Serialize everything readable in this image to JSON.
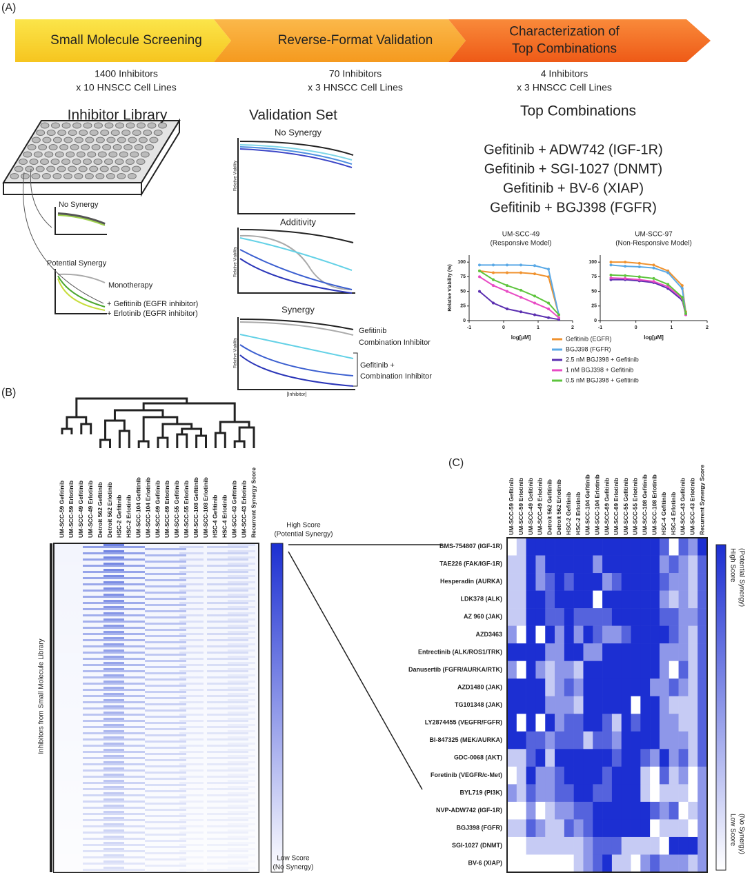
{
  "panel_a": {
    "label": "(A)",
    "steps": [
      {
        "title": [
          "Small Molecule Screening"
        ],
        "detail": [
          "1400 Inhibitors",
          "x 10 HNSCC Cell Lines"
        ]
      },
      {
        "title": [
          "Reverse-Format Validation"
        ],
        "detail": [
          "70 Inhibitors",
          "x 3 HNSCC Cell Lines"
        ]
      },
      {
        "title": [
          "Characterization of",
          "Top Combinations"
        ],
        "detail": [
          "4 Inhibitors",
          "x 3 HNSCC Cell Lines"
        ]
      }
    ],
    "library": {
      "title": "Inhibitor Library",
      "no_synergy": "No Synergy",
      "potential_synergy": "Potential Synergy",
      "monotherapy": "Monotherapy",
      "gefitinib": "+ Gefitinib (EGFR inhibitor)",
      "erlotinib": "+ Erlotinib (EGFR inhibitor)"
    },
    "validation": {
      "title": "Validation Set",
      "panels": [
        "No Synergy",
        "Additivity",
        "Synergy"
      ],
      "y_label": "Relative Viability",
      "x_label": "[Inhibitor]",
      "gefitinib": "Gefitinib",
      "combination_inhibitor": "Combination Inhibitor",
      "gefitinib_plus": [
        "Gefitinib +",
        "Combination Inhibitor"
      ]
    },
    "top": {
      "title": "Top Combinations",
      "combinations": [
        "Gefitinib + ADW742 (IGF-1R)",
        "Gefitinib + SGI-1027 (DNMT)",
        "Gefitinib + BV-6 (XIAP)",
        "Gefitinib + BGJ398 (FGFR)"
      ]
    }
  },
  "chart_data": [
    {
      "type": "line",
      "title": "UM-SCC-49",
      "subtitle": "(Responsive Model)",
      "y_label": "Relative Viability (%)",
      "x_label": "log[µM]",
      "x": [
        -0.7,
        -0.3,
        0.1,
        0.5,
        0.9,
        1.3,
        1.6
      ],
      "xlim": [
        -1,
        2
      ],
      "xticks": [
        -1,
        0,
        1,
        2
      ],
      "ylim": [
        0,
        112
      ],
      "yticks": [
        0,
        25,
        50,
        75,
        100
      ],
      "series": [
        {
          "name": "Gefitinib (EGFR)",
          "color": "#f0922e",
          "values": [
            85,
            82,
            82,
            82,
            80,
            75,
            10
          ]
        },
        {
          "name": "BGJ398 (FGFR)",
          "color": "#5aa9e6",
          "values": [
            95,
            95,
            95,
            95,
            94,
            88,
            10
          ]
        },
        {
          "name": "2.5 nM BGJ398 + Gefitinib",
          "color": "#5b2fb0",
          "values": [
            50,
            30,
            20,
            15,
            10,
            5,
            2
          ]
        },
        {
          "name": "1 nM BGJ398 + Gefitinib",
          "color": "#e84bc4",
          "values": [
            75,
            60,
            50,
            40,
            30,
            20,
            5
          ]
        },
        {
          "name": "0.5 nM BGJ398 + Gefitinib",
          "color": "#5dc43c",
          "values": [
            85,
            70,
            60,
            52,
            42,
            30,
            10
          ]
        }
      ]
    },
    {
      "type": "line",
      "title": "UM-SCC-97",
      "subtitle": "(Non-Responsive Model)",
      "x_label": "log[µM]",
      "x": [
        -0.7,
        -0.3,
        0.1,
        0.5,
        0.9,
        1.3,
        1.4
      ],
      "xlim": [
        -1,
        2
      ],
      "xticks": [
        -1,
        0,
        1,
        2
      ],
      "ylim": [
        0,
        112
      ],
      "yticks": [
        0,
        25,
        50,
        75,
        100
      ],
      "series": [
        {
          "color": "#f0922e",
          "values": [
            100,
            100,
            98,
            95,
            85,
            60,
            15
          ]
        },
        {
          "color": "#5aa9e6",
          "values": [
            95,
            93,
            92,
            90,
            82,
            55,
            12
          ]
        },
        {
          "color": "#5b2fb0",
          "values": [
            70,
            70,
            68,
            65,
            55,
            35,
            10
          ]
        },
        {
          "color": "#e84bc4",
          "values": [
            73,
            72,
            70,
            67,
            58,
            38,
            10
          ]
        },
        {
          "color": "#5dc43c",
          "values": [
            78,
            77,
            75,
            72,
            62,
            40,
            12
          ]
        }
      ]
    }
  ],
  "panel_b": {
    "label": "(B)",
    "y_label": "Inhibitors from Small Molecule Library",
    "columns": [
      "UM-SCC-59 Gefitinib",
      "UM-SCC-59 Erlotinib",
      "UM-SCC-49 Gefitinib",
      "UM-SCC-49 Erlotinib",
      "Detroit 562 Gefitinib",
      "Detroit 562 Erlotinib",
      "HSC-2 Gefitinib",
      "HSC-2 Erlotinib",
      "UM-SCC-104 Gefitinib",
      "UM-SCC-104 Erlotinib",
      "UM-SCC-69 Gefitinib",
      "UM-SCC-69 Erlotinib",
      "UM-SCC-55 Gefitinib",
      "UM-SCC-55 Erlotinib",
      "UM-SCC-108 Gefitinib",
      "UM-SCC-108 Erlotinib",
      "HSC-4 Gefitinib",
      "HSC-4 Erlotinib",
      "UM-SCC-43 Gefitinib",
      "UM-SCC-43 Erlotinib",
      "Recurrent Synergy Score"
    ],
    "high_label": [
      "High Score",
      "(Potential Synergy)"
    ],
    "low_label": [
      "Low Score",
      "(No Synergy)"
    ]
  },
  "panel_c": {
    "label": "(C)",
    "columns": [
      "UM-SCC-59 Gefitinib",
      "UM-SCC-59 Erlotinib",
      "UM-SCC-49 Gefitinib",
      "UM-SCC-49 Erlotinib",
      "Detroit 562 Gefitinib",
      "Detroit 562 Erlotinib",
      "HSC-2 Gefitinib",
      "HSC-2 Erlotinib",
      "UM-SCC-104 Gefitinib",
      "UM-SCC-104 Erlotinib",
      "UM-SCC-69 Gefitinib",
      "UM-SCC-69 Erlotinib",
      "UM-SCC-55 Gefitinib",
      "UM-SCC-55 Erlotinib",
      "UM-SCC-108 Gefitinib",
      "UM-SCC-108 Erlotinib",
      "HSC-4 Gefitinib",
      "HSC-4 Erlotinib",
      "UM-SCC-43 Gefitinib",
      "UM-SCC-43 Erlotinib",
      "Recurrent Synergy Score"
    ],
    "rows": [
      "BMS-754807 (IGF-1R)",
      "TAE226 (FAK/IGF-1R)",
      "Hesperadin (AURKA)",
      "LDK378 (ALK)",
      "AZ 960 (JAK)",
      "AZD3463",
      "Entrectinib (ALK/ROS1/TRK)",
      "Danusertib (FGFR/AURKA/RTK)",
      "AZD1480 (JAK)",
      "TG101348 (JAK)",
      "LY2874455 (VEGFR/FGFR)",
      "BI-847325 (MEK/AURKA)",
      "GDC-0068 (AKT)",
      "Foretinib (VEGFR/c-Met)",
      "BYL719 (PI3K)",
      "NVP-ADW742 (IGF-1R)",
      "BGJ398 (FGFR)",
      "SGI-1027 (DNMT)",
      "BV-6 (XIAP)"
    ],
    "vlim": [
      0,
      4
    ],
    "low_color": "#ffffff",
    "high_color": "#1c2fd2",
    "values": [
      [
        0,
        1,
        4,
        4,
        4,
        4,
        4,
        4,
        4,
        4,
        4,
        4,
        4,
        4,
        4,
        4,
        3,
        0,
        3,
        2,
        4
      ],
      [
        1,
        1,
        4,
        2,
        4,
        4,
        4,
        4,
        4,
        2,
        4,
        4,
        4,
        4,
        4,
        4,
        2,
        3,
        2,
        1,
        3
      ],
      [
        1,
        1,
        4,
        2,
        3,
        4,
        3,
        4,
        4,
        4,
        2,
        3,
        4,
        4,
        4,
        4,
        3,
        2,
        2,
        1,
        3
      ],
      [
        1,
        1,
        4,
        4,
        3,
        4,
        4,
        4,
        4,
        0,
        4,
        4,
        4,
        4,
        4,
        4,
        2,
        1,
        2,
        1,
        3
      ],
      [
        1,
        1,
        4,
        4,
        3,
        3,
        4,
        3,
        3,
        3,
        3,
        4,
        4,
        4,
        4,
        4,
        3,
        3,
        2,
        2,
        3
      ],
      [
        2,
        0,
        4,
        0,
        4,
        2,
        4,
        2,
        4,
        3,
        2,
        2,
        3,
        4,
        4,
        4,
        4,
        3,
        2,
        1,
        3
      ],
      [
        4,
        4,
        4,
        4,
        2,
        2,
        4,
        4,
        2,
        2,
        4,
        4,
        4,
        4,
        4,
        4,
        2,
        2,
        2,
        1,
        3
      ],
      [
        2,
        0,
        4,
        2,
        1,
        2,
        2,
        1,
        4,
        4,
        4,
        4,
        4,
        4,
        4,
        4,
        2,
        0,
        3,
        1,
        3
      ],
      [
        4,
        4,
        4,
        4,
        1,
        2,
        3,
        2,
        4,
        4,
        4,
        4,
        4,
        4,
        4,
        2,
        2,
        3,
        2,
        1,
        3
      ],
      [
        4,
        4,
        4,
        4,
        2,
        2,
        2,
        1,
        4,
        4,
        4,
        4,
        4,
        0,
        4,
        4,
        2,
        1,
        1,
        1,
        3
      ],
      [
        4,
        0,
        4,
        0,
        4,
        2,
        3,
        3,
        4,
        4,
        3,
        1,
        4,
        3,
        4,
        4,
        2,
        2,
        1,
        1,
        3
      ],
      [
        4,
        4,
        3,
        3,
        2,
        3,
        3,
        3,
        1,
        3,
        3,
        2,
        4,
        4,
        4,
        4,
        2,
        2,
        2,
        1,
        3
      ],
      [
        1,
        1,
        3,
        4,
        1,
        4,
        4,
        4,
        4,
        4,
        4,
        3,
        4,
        4,
        3,
        2,
        4,
        2,
        3,
        1,
        3
      ],
      [
        0,
        1,
        4,
        2,
        2,
        3,
        4,
        4,
        4,
        4,
        3,
        4,
        4,
        4,
        1,
        0,
        3,
        1,
        2,
        0,
        2
      ],
      [
        2,
        1,
        3,
        2,
        2,
        3,
        3,
        4,
        4,
        3,
        3,
        4,
        4,
        4,
        1,
        0,
        1,
        1,
        1,
        0,
        2
      ],
      [
        0,
        0,
        2,
        0,
        1,
        2,
        2,
        3,
        3,
        4,
        4,
        4,
        4,
        4,
        4,
        3,
        2,
        3,
        0,
        1,
        2
      ],
      [
        1,
        1,
        3,
        2,
        1,
        1,
        3,
        2,
        3,
        4,
        4,
        4,
        4,
        4,
        4,
        0,
        1,
        1,
        1,
        0,
        2
      ],
      [
        0,
        0,
        1,
        1,
        1,
        1,
        1,
        1,
        2,
        3,
        3,
        3,
        1,
        1,
        1,
        1,
        0,
        4,
        4,
        4,
        2
      ],
      [
        0,
        0,
        0,
        0,
        0,
        0,
        0,
        1,
        2,
        3,
        4,
        1,
        1,
        0,
        2,
        3,
        2,
        2,
        2,
        1,
        2
      ]
    ]
  }
}
